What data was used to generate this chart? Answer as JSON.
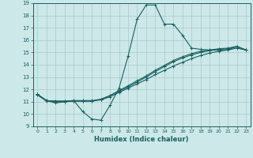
{
  "xlabel": "Humidex (Indice chaleur)",
  "bg_color": "#cce8e8",
  "grid_color": "#adc8c8",
  "line_color": "#1a6060",
  "xlim": [
    -0.5,
    23.5
  ],
  "ylim": [
    9,
    19
  ],
  "xticks": [
    0,
    1,
    2,
    3,
    4,
    5,
    6,
    7,
    8,
    9,
    10,
    11,
    12,
    13,
    14,
    15,
    16,
    17,
    18,
    19,
    20,
    21,
    22,
    23
  ],
  "yticks": [
    9,
    10,
    11,
    12,
    13,
    14,
    15,
    16,
    17,
    18,
    19
  ],
  "curve1_x": [
    0,
    1,
    2,
    3,
    4,
    5,
    6,
    7,
    8,
    9,
    10,
    11,
    12,
    13,
    14,
    15,
    16,
    17,
    18,
    19,
    20,
    21,
    22,
    23
  ],
  "curve1_y": [
    11.6,
    11.1,
    10.9,
    11.0,
    11.1,
    10.2,
    9.6,
    9.5,
    10.7,
    12.1,
    14.7,
    17.7,
    18.85,
    18.85,
    17.3,
    17.3,
    16.4,
    15.35,
    15.25,
    15.2,
    15.2,
    15.2,
    15.5,
    15.2
  ],
  "curve2_x": [
    0,
    1,
    2,
    3,
    4,
    5,
    6,
    7,
    8,
    9,
    10,
    11,
    12,
    13,
    14,
    15,
    16,
    17,
    18,
    19,
    20,
    21,
    22,
    23
  ],
  "curve2_y": [
    11.55,
    11.05,
    11.05,
    11.05,
    11.05,
    11.05,
    11.05,
    11.15,
    11.4,
    11.75,
    12.1,
    12.45,
    12.8,
    13.2,
    13.55,
    13.9,
    14.2,
    14.5,
    14.75,
    14.95,
    15.1,
    15.2,
    15.35,
    15.2
  ],
  "curve3_x": [
    0,
    1,
    2,
    3,
    4,
    5,
    6,
    7,
    8,
    9,
    10,
    11,
    12,
    13,
    14,
    15,
    16,
    17,
    18,
    19,
    20,
    21,
    22,
    23
  ],
  "curve3_y": [
    11.6,
    11.1,
    11.05,
    11.05,
    11.1,
    11.1,
    11.1,
    11.2,
    11.5,
    11.85,
    12.2,
    12.6,
    13.0,
    13.45,
    13.85,
    14.25,
    14.55,
    14.8,
    15.0,
    15.15,
    15.25,
    15.3,
    15.45,
    15.2
  ],
  "curve4_x": [
    0,
    1,
    2,
    3,
    4,
    5,
    6,
    7,
    8,
    9,
    10,
    11,
    12,
    13,
    14,
    15,
    16,
    17,
    18,
    19,
    20,
    21,
    22,
    23
  ],
  "curve4_y": [
    11.6,
    11.1,
    11.0,
    11.0,
    11.05,
    11.05,
    11.05,
    11.2,
    11.5,
    11.9,
    12.3,
    12.7,
    13.1,
    13.55,
    13.95,
    14.35,
    14.65,
    14.9,
    15.1,
    15.2,
    15.3,
    15.35,
    15.5,
    15.2
  ]
}
